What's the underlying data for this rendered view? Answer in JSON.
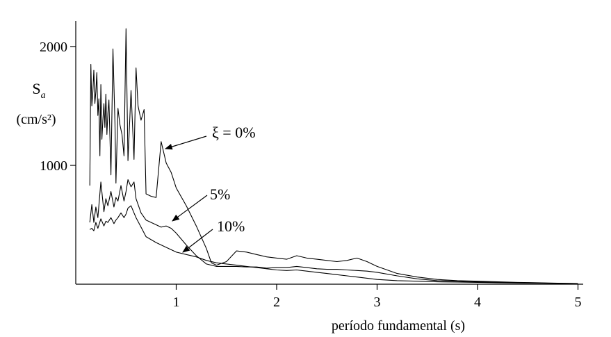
{
  "chart_data": {
    "type": "line",
    "xlabel": "período fundamental (s)",
    "ylabel": {
      "symbol": "S",
      "subscript": "a",
      "unit": "(cm/s²)"
    },
    "xlim": [
      0,
      5
    ],
    "ylim": [
      0,
      2150
    ],
    "x_ticks": [
      1,
      2,
      3,
      4,
      5
    ],
    "y_ticks": [
      1000,
      2000
    ],
    "grid": false,
    "annotations": [
      {
        "id": "xi0",
        "text": "ξ = 0%",
        "series": 0
      },
      {
        "id": "xi5",
        "text": "5%",
        "series": 1
      },
      {
        "id": "xi10",
        "text": "10%",
        "series": 2
      }
    ],
    "series": [
      {
        "name": "ξ = 0%",
        "x": [
          0.14,
          0.15,
          0.16,
          0.17,
          0.18,
          0.19,
          0.2,
          0.21,
          0.22,
          0.23,
          0.24,
          0.25,
          0.26,
          0.27,
          0.28,
          0.29,
          0.3,
          0.31,
          0.32,
          0.33,
          0.35,
          0.37,
          0.39,
          0.4,
          0.42,
          0.44,
          0.46,
          0.48,
          0.5,
          0.52,
          0.55,
          0.58,
          0.6,
          0.62,
          0.65,
          0.68,
          0.7,
          0.75,
          0.8,
          0.85,
          0.9,
          0.95,
          1.0,
          1.1,
          1.2,
          1.3,
          1.35,
          1.4,
          1.5,
          1.6,
          1.7,
          1.8,
          1.9,
          2.0,
          2.1,
          2.2,
          2.3,
          2.4,
          2.5,
          2.6,
          2.7,
          2.8,
          2.9,
          3.0,
          3.2,
          3.4,
          3.6,
          3.8,
          4.0,
          4.2,
          4.4,
          4.6,
          4.8,
          5.0
        ],
        "values": [
          830,
          1850,
          1500,
          1620,
          1800,
          1520,
          1620,
          1780,
          1420,
          1560,
          1080,
          1680,
          1220,
          1380,
          1520,
          1320,
          1600,
          1260,
          1440,
          1550,
          920,
          1980,
          1350,
          850,
          1480,
          1340,
          1260,
          1080,
          2150,
          1040,
          1630,
          1050,
          1820,
          1500,
          1380,
          1470,
          760,
          740,
          730,
          1200,
          1020,
          940,
          810,
          660,
          490,
          300,
          180,
          160,
          190,
          280,
          270,
          250,
          230,
          220,
          210,
          240,
          220,
          210,
          200,
          190,
          200,
          220,
          190,
          150,
          90,
          60,
          40,
          30,
          25,
          20,
          15,
          12,
          8,
          5
        ]
      },
      {
        "name": "5%",
        "x": [
          0.14,
          0.16,
          0.18,
          0.2,
          0.22,
          0.25,
          0.28,
          0.3,
          0.32,
          0.35,
          0.38,
          0.4,
          0.42,
          0.45,
          0.48,
          0.5,
          0.52,
          0.55,
          0.58,
          0.6,
          0.65,
          0.7,
          0.75,
          0.8,
          0.85,
          0.9,
          0.95,
          1.0,
          1.1,
          1.2,
          1.3,
          1.4,
          1.5,
          1.6,
          1.7,
          1.8,
          1.9,
          2.0,
          2.1,
          2.2,
          2.3,
          2.4,
          2.5,
          2.6,
          2.7,
          2.8,
          2.9,
          3.0,
          3.2,
          3.4,
          3.6,
          3.8,
          4.0,
          4.2,
          4.4,
          4.6,
          4.8,
          5.0
        ],
        "values": [
          520,
          670,
          520,
          650,
          560,
          860,
          610,
          720,
          660,
          780,
          650,
          730,
          700,
          830,
          700,
          780,
          880,
          820,
          860,
          720,
          600,
          540,
          520,
          500,
          480,
          490,
          470,
          430,
          330,
          240,
          170,
          150,
          150,
          150,
          145,
          145,
          135,
          140,
          140,
          150,
          140,
          130,
          125,
          125,
          120,
          115,
          110,
          100,
          70,
          45,
          30,
          25,
          20,
          15,
          12,
          10,
          7,
          5
        ]
      },
      {
        "name": "10%",
        "x": [
          0.14,
          0.16,
          0.18,
          0.2,
          0.22,
          0.25,
          0.28,
          0.3,
          0.32,
          0.35,
          0.38,
          0.4,
          0.42,
          0.45,
          0.48,
          0.5,
          0.52,
          0.55,
          0.58,
          0.6,
          0.65,
          0.7,
          0.8,
          0.9,
          1.0,
          1.1,
          1.2,
          1.3,
          1.4,
          1.5,
          1.6,
          1.7,
          1.8,
          1.9,
          2.0,
          2.1,
          2.2,
          2.3,
          2.4,
          2.5,
          2.6,
          2.7,
          2.8,
          2.9,
          3.0,
          3.2,
          3.4,
          3.6,
          3.8,
          4.0,
          4.2,
          4.4,
          4.6,
          4.8,
          5.0
        ],
        "values": [
          460,
          470,
          450,
          520,
          470,
          550,
          490,
          530,
          520,
          560,
          510,
          540,
          560,
          600,
          560,
          590,
          640,
          660,
          600,
          560,
          480,
          400,
          350,
          310,
          270,
          250,
          230,
          200,
          180,
          170,
          160,
          150,
          140,
          130,
          120,
          115,
          120,
          110,
          100,
          90,
          80,
          70,
          60,
          50,
          40,
          30,
          25,
          20,
          18,
          15,
          12,
          10,
          8,
          6,
          5
        ]
      }
    ]
  }
}
